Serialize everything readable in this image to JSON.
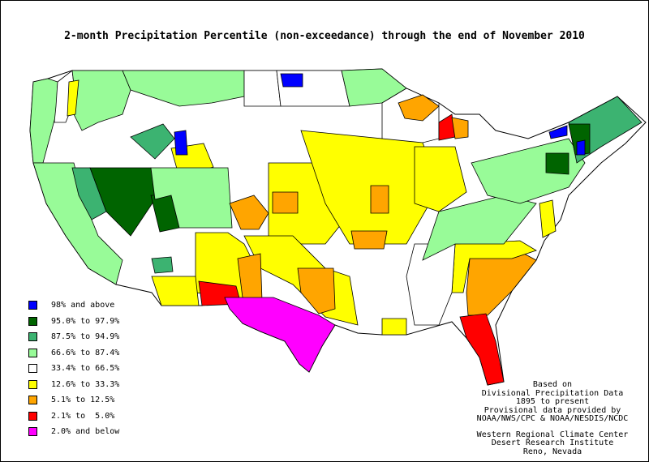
{
  "title": "2-month Precipitation Percentile (non-exceedance) through the end of November 2010",
  "legend": [
    {
      "label": "98% and above",
      "color": "#0000ff"
    },
    {
      "label": "95.0% to 97.9%",
      "color": "#006400"
    },
    {
      "label": "87.5% to 94.9%",
      "color": "#3cb371"
    },
    {
      "label": "66.6% to 87.4%",
      "color": "#98fb98"
    },
    {
      "label": "33.4% to 66.5%",
      "color": "#ffffff"
    },
    {
      "label": "12.6% to 33.3%",
      "color": "#ffff00"
    },
    {
      "label": "5.1% to 12.5%",
      "color": "#ffa500"
    },
    {
      "label": "2.1% to  5.0%",
      "color": "#ff0000"
    },
    {
      "label": "2.0% and below",
      "color": "#ff00ff"
    }
  ],
  "credits": {
    "block1": [
      "Based on",
      "Divisional Precipitation Data",
      "1895 to present",
      "Provisional data provided by",
      "NOAA/NWS/CPC & NOAA/NESDIS/NCDC"
    ],
    "block2": [
      "Western Regional Climate Center",
      "Desert Research Institute",
      "Reno, Nevada"
    ]
  },
  "map_regions": [
    {
      "name": "pacific-northwest-coast",
      "category": 3,
      "pts": [
        [
          40,
          100
        ],
        [
          58,
          96
        ],
        [
          70,
          100
        ],
        [
          68,
          140
        ],
        [
          60,
          170
        ],
        [
          52,
          200
        ],
        [
          40,
          200
        ],
        [
          36,
          160
        ]
      ]
    },
    {
      "name": "washington-interior",
      "category": 4,
      "pts": [
        [
          70,
          100
        ],
        [
          88,
          86
        ],
        [
          92,
          120
        ],
        [
          80,
          150
        ],
        [
          66,
          150
        ],
        [
          68,
          130
        ]
      ]
    },
    {
      "name": "idaho-montana-west",
      "category": 3,
      "pts": [
        [
          88,
          86
        ],
        [
          150,
          86
        ],
        [
          160,
          110
        ],
        [
          150,
          140
        ],
        [
          120,
          150
        ],
        [
          100,
          160
        ],
        [
          90,
          140
        ],
        [
          92,
          120
        ]
      ]
    },
    {
      "name": "idaho-panhandle-band",
      "category": 5,
      "pts": [
        [
          84,
          100
        ],
        [
          96,
          98
        ],
        [
          92,
          140
        ],
        [
          82,
          142
        ]
      ]
    },
    {
      "name": "montana-main",
      "category": 3,
      "pts": [
        [
          150,
          86
        ],
        [
          300,
          86
        ],
        [
          300,
          118
        ],
        [
          260,
          126
        ],
        [
          220,
          130
        ],
        [
          160,
          110
        ]
      ]
    },
    {
      "name": "montana-east",
      "category": 4,
      "pts": [
        [
          300,
          86
        ],
        [
          340,
          86
        ],
        [
          345,
          130
        ],
        [
          300,
          130
        ],
        [
          300,
          118
        ]
      ]
    },
    {
      "name": "north-dakota",
      "category": 4,
      "pts": [
        [
          340,
          86
        ],
        [
          420,
          86
        ],
        [
          430,
          130
        ],
        [
          345,
          130
        ]
      ]
    },
    {
      "name": "nd-northeast-blue",
      "category": 0,
      "pts": [
        [
          345,
          90
        ],
        [
          372,
          90
        ],
        [
          372,
          106
        ],
        [
          348,
          106
        ]
      ]
    },
    {
      "name": "minnesota-north",
      "category": 3,
      "pts": [
        [
          420,
          86
        ],
        [
          470,
          84
        ],
        [
          500,
          108
        ],
        [
          470,
          126
        ],
        [
          430,
          130
        ]
      ]
    },
    {
      "name": "great-lakes-west",
      "category": 4,
      "pts": [
        [
          470,
          126
        ],
        [
          500,
          108
        ],
        [
          540,
          126
        ],
        [
          540,
          170
        ],
        [
          500,
          180
        ],
        [
          470,
          170
        ]
      ]
    },
    {
      "name": "upper-michigan",
      "category": 6,
      "pts": [
        [
          490,
          126
        ],
        [
          520,
          116
        ],
        [
          540,
          130
        ],
        [
          520,
          148
        ],
        [
          498,
          145
        ]
      ]
    },
    {
      "name": "lower-michigan-red",
      "category": 7,
      "pts": [
        [
          540,
          150
        ],
        [
          556,
          140
        ],
        [
          560,
          168
        ],
        [
          540,
          172
        ]
      ]
    },
    {
      "name": "michigan-orange",
      "category": 6,
      "pts": [
        [
          556,
          144
        ],
        [
          576,
          148
        ],
        [
          576,
          168
        ],
        [
          560,
          170
        ]
      ]
    },
    {
      "name": "wyoming-yellow-west",
      "category": 5,
      "pts": [
        [
          210,
          182
        ],
        [
          250,
          176
        ],
        [
          262,
          205
        ],
        [
          220,
          218
        ]
      ]
    },
    {
      "name": "montana-south-green",
      "category": 2,
      "pts": [
        [
          160,
          168
        ],
        [
          200,
          152
        ],
        [
          214,
          170
        ],
        [
          190,
          195
        ]
      ]
    },
    {
      "name": "idaho-blue",
      "category": 0,
      "pts": [
        [
          214,
          162
        ],
        [
          228,
          160
        ],
        [
          230,
          190
        ],
        [
          216,
          190
        ]
      ]
    },
    {
      "name": "oregon-ca-coast",
      "category": 3,
      "pts": [
        [
          40,
          200
        ],
        [
          90,
          200
        ],
        [
          100,
          240
        ],
        [
          120,
          290
        ],
        [
          150,
          320
        ],
        [
          142,
          350
        ],
        [
          108,
          330
        ],
        [
          80,
          290
        ],
        [
          56,
          250
        ]
      ]
    },
    {
      "name": "nevada-west-green",
      "category": 2,
      "pts": [
        [
          88,
          206
        ],
        [
          110,
          206
        ],
        [
          130,
          260
        ],
        [
          112,
          270
        ],
        [
          96,
          240
        ]
      ]
    },
    {
      "name": "nevada-utah-dark",
      "category": 1,
      "pts": [
        [
          110,
          206
        ],
        [
          185,
          206
        ],
        [
          190,
          245
        ],
        [
          160,
          290
        ],
        [
          130,
          260
        ]
      ]
    },
    {
      "name": "utah-east-dark",
      "category": 1,
      "pts": [
        [
          185,
          240
        ],
        [
          210,
          240
        ],
        [
          220,
          280
        ],
        [
          196,
          285
        ]
      ]
    },
    {
      "name": "utah-colorado-light",
      "category": 3,
      "pts": [
        [
          185,
          206
        ],
        [
          280,
          206
        ],
        [
          285,
          280
        ],
        [
          220,
          280
        ],
        [
          210,
          240
        ],
        [
          190,
          245
        ]
      ]
    },
    {
      "name": "nebraska-kansas-yellow",
      "category": 5,
      "pts": [
        [
          330,
          200
        ],
        [
          430,
          200
        ],
        [
          440,
          250
        ],
        [
          400,
          300
        ],
        [
          330,
          300
        ]
      ]
    },
    {
      "name": "kansas-orange",
      "category": 6,
      "pts": [
        [
          335,
          236
        ],
        [
          366,
          236
        ],
        [
          366,
          262
        ],
        [
          335,
          262
        ]
      ]
    },
    {
      "name": "colorado-orange",
      "category": 6,
      "pts": [
        [
          282,
          250
        ],
        [
          312,
          240
        ],
        [
          330,
          262
        ],
        [
          318,
          282
        ],
        [
          296,
          282
        ]
      ]
    },
    {
      "name": "midwest-yellow",
      "category": 5,
      "pts": [
        [
          370,
          160
        ],
        [
          520,
          175
        ],
        [
          540,
          230
        ],
        [
          500,
          300
        ],
        [
          430,
          300
        ],
        [
          400,
          250
        ]
      ]
    },
    {
      "name": "illinois-orange",
      "category": 6,
      "pts": [
        [
          456,
          228
        ],
        [
          478,
          228
        ],
        [
          478,
          262
        ],
        [
          456,
          262
        ]
      ]
    },
    {
      "name": "arkansas-orange",
      "category": 6,
      "pts": [
        [
          432,
          284
        ],
        [
          476,
          284
        ],
        [
          472,
          306
        ],
        [
          436,
          306
        ]
      ]
    },
    {
      "name": "southern-plains-yellow",
      "category": 5,
      "pts": [
        [
          300,
          290
        ],
        [
          360,
          290
        ],
        [
          400,
          330
        ],
        [
          430,
          340
        ],
        [
          440,
          400
        ],
        [
          400,
          390
        ],
        [
          360,
          350
        ],
        [
          320,
          330
        ]
      ]
    },
    {
      "name": "oklahoma-texas-orange",
      "category": 6,
      "pts": [
        [
          366,
          330
        ],
        [
          410,
          330
        ],
        [
          412,
          380
        ],
        [
          392,
          386
        ],
        [
          370,
          360
        ]
      ]
    },
    {
      "name": "new-mexico-yellow",
      "category": 5,
      "pts": [
        [
          240,
          286
        ],
        [
          280,
          286
        ],
        [
          300,
          300
        ],
        [
          320,
          340
        ],
        [
          300,
          368
        ],
        [
          240,
          360
        ]
      ]
    },
    {
      "name": "new-mexico-orange",
      "category": 6,
      "pts": [
        [
          292,
          318
        ],
        [
          320,
          312
        ],
        [
          322,
          370
        ],
        [
          298,
          366
        ]
      ]
    },
    {
      "name": "arizona-south-yellow",
      "category": 5,
      "pts": [
        [
          186,
          340
        ],
        [
          240,
          340
        ],
        [
          244,
          376
        ],
        [
          198,
          376
        ]
      ]
    },
    {
      "name": "arizona-green",
      "category": 2,
      "pts": [
        [
          186,
          318
        ],
        [
          210,
          316
        ],
        [
          212,
          334
        ],
        [
          190,
          336
        ]
      ]
    },
    {
      "name": "southwest-red",
      "category": 7,
      "pts": [
        [
          244,
          346
        ],
        [
          290,
          352
        ],
        [
          296,
          374
        ],
        [
          248,
          376
        ]
      ]
    },
    {
      "name": "texas-magenta",
      "category": 8,
      "pts": [
        [
          276,
          366
        ],
        [
          336,
          366
        ],
        [
          392,
          388
        ],
        [
          412,
          400
        ],
        [
          396,
          426
        ],
        [
          380,
          458
        ],
        [
          368,
          448
        ],
        [
          350,
          420
        ],
        [
          320,
          408
        ],
        [
          298,
          398
        ],
        [
          282,
          380
        ]
      ]
    },
    {
      "name": "louisiana-yellow",
      "category": 5,
      "pts": [
        [
          470,
          392
        ],
        [
          500,
          392
        ],
        [
          500,
          412
        ],
        [
          470,
          412
        ]
      ]
    },
    {
      "name": "carolinas-orange",
      "category": 6,
      "pts": [
        [
          578,
          318
        ],
        [
          630,
          304
        ],
        [
          660,
          320
        ],
        [
          630,
          358
        ],
        [
          600,
          388
        ],
        [
          576,
          388
        ],
        [
          574,
          360
        ]
      ]
    },
    {
      "name": "georgia-yellow",
      "category": 5,
      "pts": [
        [
          560,
          300
        ],
        [
          640,
          296
        ],
        [
          660,
          308
        ],
        [
          630,
          318
        ],
        [
          578,
          318
        ],
        [
          570,
          360
        ],
        [
          556,
          360
        ]
      ]
    },
    {
      "name": "florida-red",
      "category": 7,
      "pts": [
        [
          566,
          390
        ],
        [
          598,
          386
        ],
        [
          610,
          420
        ],
        [
          620,
          470
        ],
        [
          600,
          474
        ],
        [
          590,
          440
        ],
        [
          574,
          416
        ]
      ]
    },
    {
      "name": "appalachia-white",
      "category": 4,
      "pts": [
        [
          510,
          300
        ],
        [
          560,
          300
        ],
        [
          556,
          360
        ],
        [
          540,
          400
        ],
        [
          510,
          400
        ],
        [
          500,
          340
        ]
      ]
    },
    {
      "name": "mid-atlantic-green",
      "category": 3,
      "pts": [
        [
          540,
          260
        ],
        [
          620,
          240
        ],
        [
          660,
          250
        ],
        [
          620,
          300
        ],
        [
          560,
          300
        ],
        [
          520,
          320
        ]
      ]
    },
    {
      "name": "ohio-yellow",
      "category": 5,
      "pts": [
        [
          510,
          180
        ],
        [
          560,
          180
        ],
        [
          574,
          236
        ],
        [
          540,
          260
        ],
        [
          510,
          250
        ]
      ]
    },
    {
      "name": "northeast-green",
      "category": 3,
      "pts": [
        [
          580,
          200
        ],
        [
          700,
          170
        ],
        [
          720,
          200
        ],
        [
          700,
          230
        ],
        [
          640,
          250
        ],
        [
          600,
          240
        ]
      ]
    },
    {
      "name": "new-york-dark",
      "category": 1,
      "pts": [
        [
          672,
          188
        ],
        [
          700,
          188
        ],
        [
          700,
          214
        ],
        [
          672,
          212
        ]
      ]
    },
    {
      "name": "new-england-green",
      "category": 2,
      "pts": [
        [
          700,
          150
        ],
        [
          760,
          118
        ],
        [
          790,
          150
        ],
        [
          740,
          180
        ],
        [
          710,
          200
        ]
      ]
    },
    {
      "name": "new-england-dark",
      "category": 1,
      "pts": [
        [
          700,
          152
        ],
        [
          726,
          152
        ],
        [
          726,
          188
        ],
        [
          708,
          190
        ]
      ]
    },
    {
      "name": "vermont-blue",
      "category": 0,
      "pts": [
        [
          676,
          162
        ],
        [
          698,
          154
        ],
        [
          698,
          166
        ],
        [
          678,
          170
        ]
      ]
    },
    {
      "name": "nh-blue",
      "category": 0,
      "pts": [
        [
          710,
          174
        ],
        [
          720,
          172
        ],
        [
          720,
          190
        ],
        [
          710,
          190
        ]
      ]
    },
    {
      "name": "delmarva-yellow",
      "category": 5,
      "pts": [
        [
          664,
          250
        ],
        [
          680,
          246
        ],
        [
          684,
          284
        ],
        [
          668,
          292
        ]
      ]
    }
  ]
}
